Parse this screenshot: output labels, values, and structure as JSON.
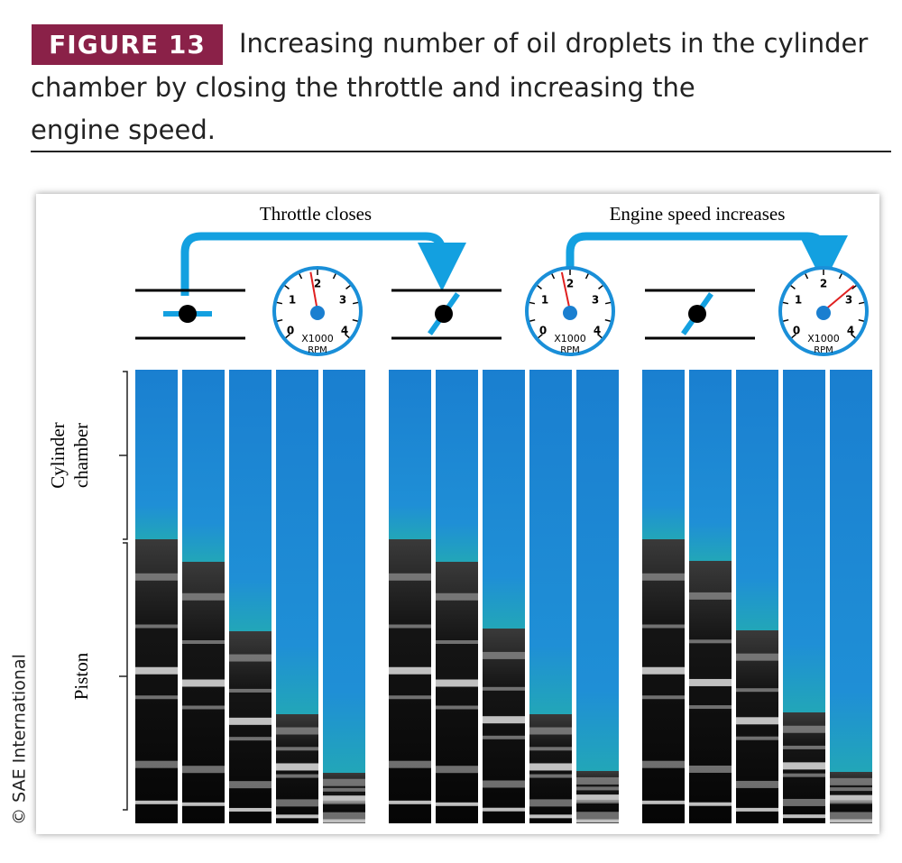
{
  "header": {
    "label": "FIGURE 13",
    "caption": [
      "Increasing number of oil droplets in the cylinder",
      "chamber by closing the throttle and increasing the",
      "engine speed."
    ]
  },
  "figure": {
    "arrow_labels": [
      "Throttle closes",
      "Engine speed increases"
    ],
    "gauge_labels": [
      "0",
      "1",
      "2",
      "3",
      "4",
      "X1000",
      "RPM"
    ],
    "side_labels": [
      "Cylinder",
      "chamber",
      "Piston"
    ]
  },
  "credit": "© SAE International"
}
